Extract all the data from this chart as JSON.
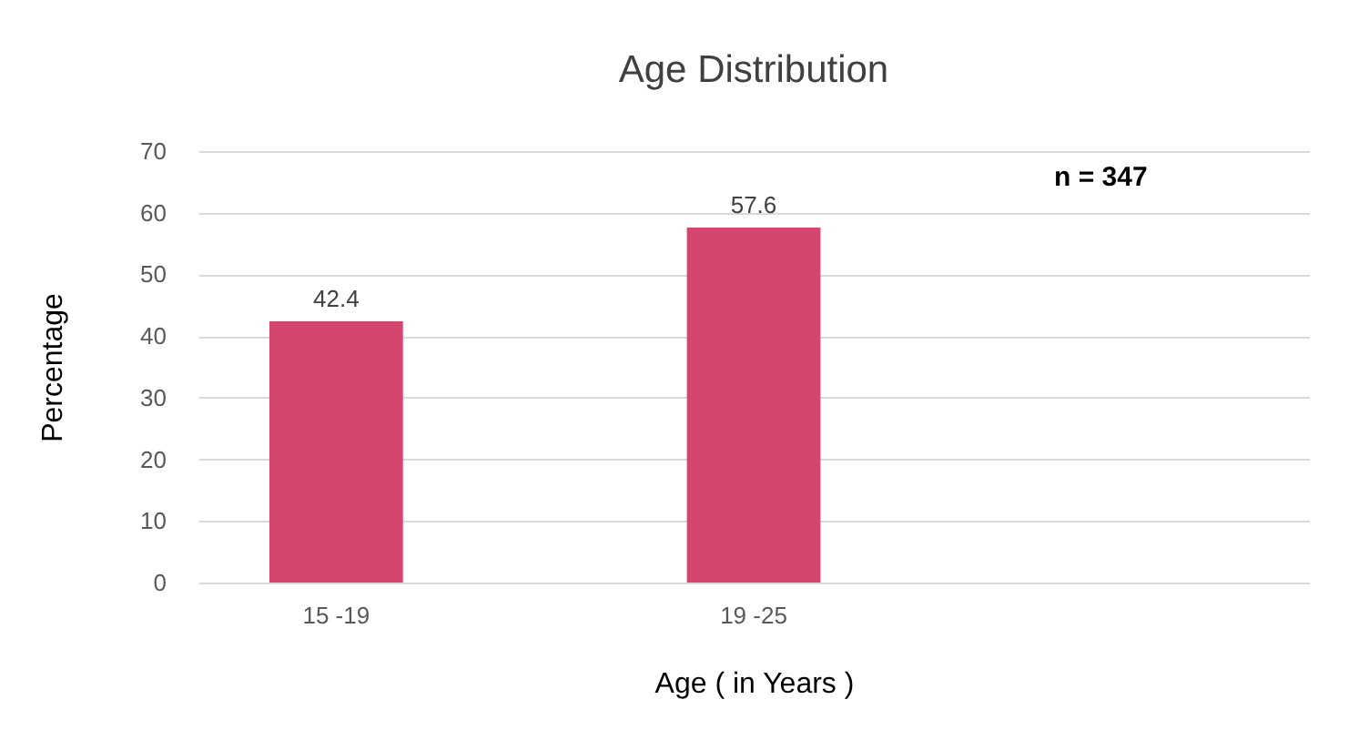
{
  "chart_data": {
    "type": "bar",
    "title": "Age Distribution",
    "xlabel": "Age ( in Years )",
    "ylabel": "Percentage",
    "categories": [
      "15  -19",
      "19  -25",
      null
    ],
    "values": [
      42.4,
      57.6,
      null
    ],
    "color": "#d5466f",
    "ylim": [
      0,
      70
    ],
    "yticks": [
      0,
      10,
      20,
      30,
      40,
      50,
      60,
      70
    ],
    "grid": "y",
    "data_labels": true,
    "annotations": [
      "n  = 347"
    ]
  }
}
